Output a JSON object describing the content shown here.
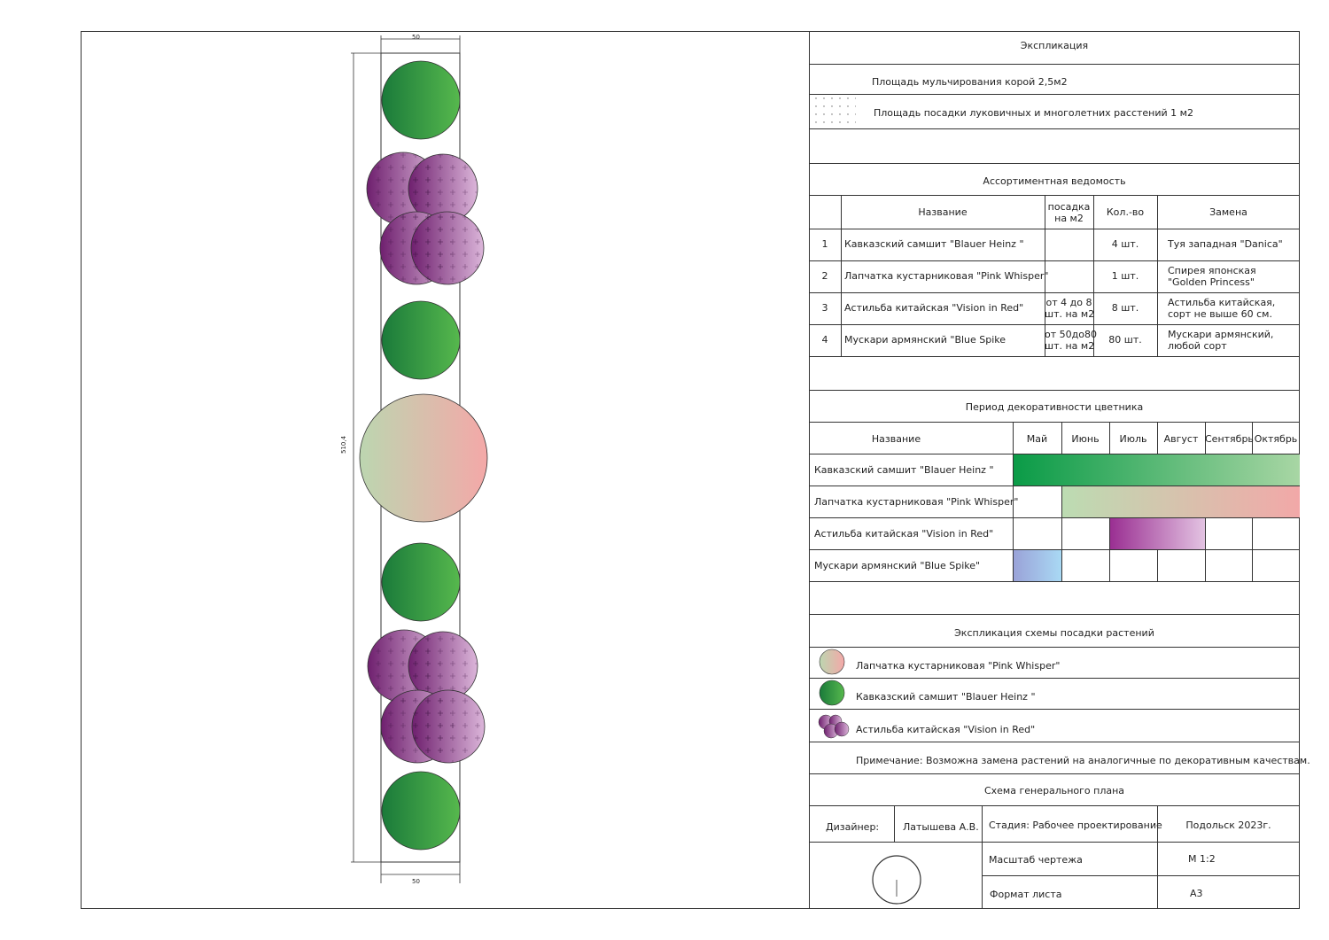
{
  "plan": {
    "dim_top": "50",
    "dim_bottom": "50",
    "dim_side": "510,4"
  },
  "explication": {
    "title": "Экспликация",
    "mulch": "Площадь мульчирования корой 2,5м2",
    "bulbs": "Площадь посадки луковичных и многолетних расстений 1 м2"
  },
  "assortment": {
    "title": "Ассортиментная ведомость",
    "headers": {
      "name": "Название",
      "planting": "посадка\nна м2",
      "qty": "Кол.-во",
      "replacement": "Замена"
    },
    "rows": [
      {
        "n": "1",
        "name": "Кавказский самшит \"Blauer Heinz \"",
        "planting": "",
        "qty": "4 шт.",
        "replacement": "Туя западная \"Danica\""
      },
      {
        "n": "2",
        "name": "Лапчатка кустарниковая \"Pink Whisper\"",
        "planting": "",
        "qty": "1 шт.",
        "replacement": "Спирея японская\n\"Golden Princess\""
      },
      {
        "n": "3",
        "name": "Астильба китайская \"Vision in Red\"",
        "planting": "от 4 до 8\nшт. на м2",
        "qty": "8 шт.",
        "replacement": "Астильба китайская,\nсорт не выше 60 см."
      },
      {
        "n": "4",
        "name": "Мускари армянский \"Blue Spike",
        "planting": "от 50до80\nшт. на м2",
        "qty": "80 шт.",
        "replacement": "Мускари армянский,\nлюбой сорт"
      }
    ]
  },
  "period": {
    "title": "Период декоративности цветника",
    "name_header": "Название",
    "months": [
      "Май",
      "Июнь",
      "Июль",
      "Август",
      "Сентябрь",
      "Октябрь"
    ],
    "rows": [
      {
        "name": "Кавказский самшит \"Blauer Heinz \"",
        "start": 0,
        "end": 6,
        "colors": [
          "#0a9b47",
          "#a8d6a4"
        ]
      },
      {
        "name": "Лапчатка кустарниковая \"Pink Whisper\"",
        "start": 1,
        "end": 6,
        "colors": [
          "#bcdcb2",
          "#f2a8a8"
        ]
      },
      {
        "name": "Астильба китайская \"Vision in Red\"",
        "start": 2,
        "end": 4,
        "colors": [
          "#9a2f92",
          "#e3c3e2"
        ]
      },
      {
        "name": "Мускари армянский \"Blue Spike\"",
        "start": 0,
        "end": 1,
        "colors": [
          "#9aa2d8",
          "#a9d9f4"
        ]
      }
    ]
  },
  "legend": {
    "title": "Экспликация схемы посадки растений",
    "items": [
      {
        "icon": "potentilla-circle-icon",
        "label": "Лапчатка кустарниковая \"Pink Whisper\""
      },
      {
        "icon": "boxwood-circle-icon",
        "label": "Кавказский самшит \"Blauer Heinz \""
      },
      {
        "icon": "astilbe-cluster-icon",
        "label": "Астильба китайская \"Vision in Red\""
      }
    ],
    "note": "Примечание: Возможна замена растений на аналогичные по декоративным качествам."
  },
  "stamp": {
    "title": "Схема генерального плана",
    "designer_label": "Дизайнер:",
    "designer": "Латышева А.В.",
    "stage": "Стадия: Рабочее проектирование",
    "place": "Подольск 2023г.",
    "scale_label": "Масштаб чертежа",
    "scale": "М 1:2",
    "format_label": "Формат листа",
    "format": "А3"
  },
  "colors": {
    "boxwood_dark": "#1a7a3a",
    "boxwood_light": "#56b84d",
    "astilbe_dark": "#6e1f6e",
    "astilbe_light": "#dcb6da",
    "potentilla_green": "#bcd6b0",
    "potentilla_pink": "#f4a8a8"
  }
}
